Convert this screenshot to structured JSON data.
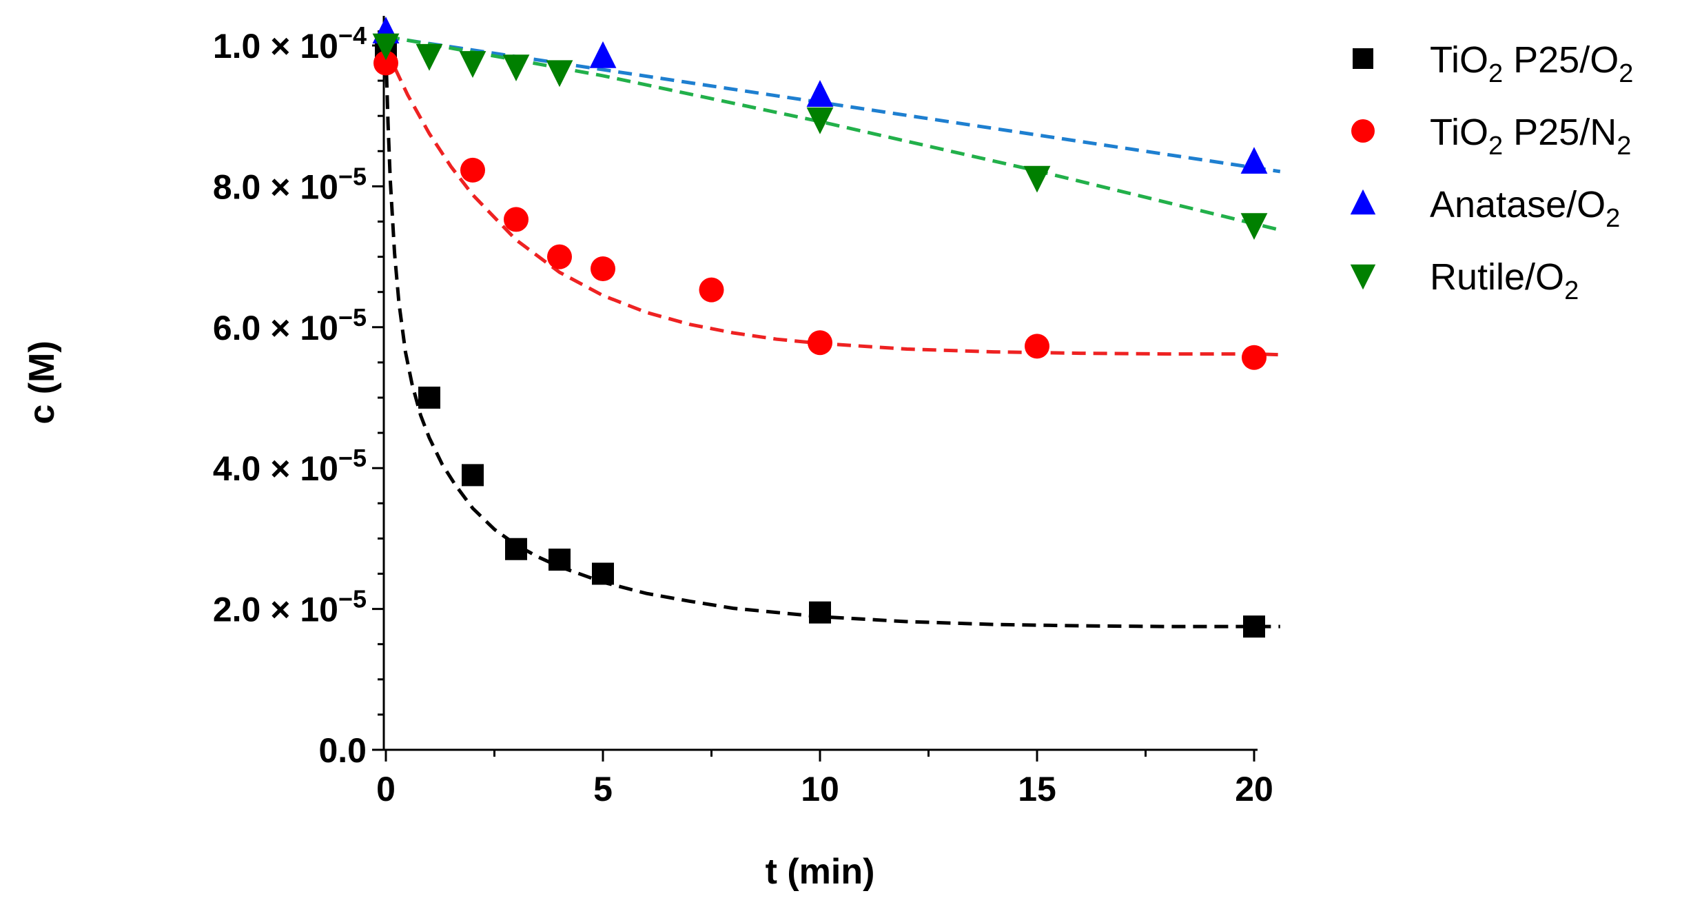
{
  "chart_data": {
    "type": "scatter",
    "title": "",
    "xlabel": "t (min)",
    "ylabel": "c (M)",
    "xlim": [
      0,
      21
    ],
    "ylim": [
      0,
      0.000105
    ],
    "x_ticks": [
      0,
      5,
      10,
      15,
      20
    ],
    "x_tick_labels": [
      "0",
      "5",
      "10",
      "15",
      "20"
    ],
    "y_ticks": [
      0,
      2e-05,
      4e-05,
      6e-05,
      8e-05,
      0.0001
    ],
    "y_tick_labels": [
      {
        "mantissa": "0.0",
        "times": "",
        "base": "",
        "exp": ""
      },
      {
        "mantissa": "2.0",
        "times": "×",
        "base": "10",
        "exp": "−5"
      },
      {
        "mantissa": "4.0",
        "times": "×",
        "base": "10",
        "exp": "−5"
      },
      {
        "mantissa": "6.0",
        "times": "×",
        "base": "10",
        "exp": "−5"
      },
      {
        "mantissa": "8.0",
        "times": "×",
        "base": "10",
        "exp": "−5"
      },
      {
        "mantissa": "1.0",
        "times": "×",
        "base": "10",
        "exp": "−4"
      }
    ],
    "grid": false,
    "legend_position": "top-right, outside plot",
    "series": [
      {
        "name": "TiO2 P25/O2",
        "legend_parts": [
          {
            "t": "TiO"
          },
          {
            "t": "2",
            "sub": true
          },
          {
            "t": " P25/O"
          },
          {
            "t": "2",
            "sub": true
          }
        ],
        "marker": "square",
        "color": "#000000",
        "points": [
          [
            0,
            9.9e-05
          ],
          [
            1,
            5e-05
          ],
          [
            2,
            3.9e-05
          ],
          [
            3,
            2.85e-05
          ],
          [
            4,
            2.7e-05
          ],
          [
            5,
            2.5e-05
          ],
          [
            10,
            1.95e-05
          ],
          [
            20,
            1.75e-05
          ]
        ],
        "fit": {
          "color": "#000000",
          "x": [
            0,
            0.05,
            0.1,
            0.2,
            0.3,
            0.45,
            0.6,
            0.8,
            1,
            1.3,
            1.6,
            2,
            2.5,
            3,
            3.5,
            4,
            5,
            6,
            7,
            8,
            10,
            12,
            14,
            16,
            18,
            20,
            20.6
          ],
          "y": [
            9.9e-05,
            8.9e-05,
            8.1e-05,
            7.05e-05,
            6.35e-05,
            5.65e-05,
            5.2e-05,
            4.75e-05,
            4.43e-05,
            4.05e-05,
            3.76e-05,
            3.43e-05,
            3.13e-05,
            2.91e-05,
            2.74e-05,
            2.6e-05,
            2.38e-05,
            2.22e-05,
            2.11e-05,
            2.01e-05,
            1.89e-05,
            1.82e-05,
            1.78e-05,
            1.76e-05,
            1.75e-05,
            1.75e-05,
            1.75e-05
          ]
        }
      },
      {
        "name": "TiO2 P25/N2",
        "legend_parts": [
          {
            "t": "TiO"
          },
          {
            "t": "2",
            "sub": true
          },
          {
            "t": " P25/N"
          },
          {
            "t": "2",
            "sub": true
          }
        ],
        "marker": "circle",
        "color": "#ff0000",
        "points": [
          [
            0,
            9.75e-05
          ],
          [
            2,
            8.23e-05
          ],
          [
            3,
            7.53e-05
          ],
          [
            4,
            7e-05
          ],
          [
            5,
            6.83e-05
          ],
          [
            7.5,
            6.53e-05
          ],
          [
            10,
            5.78e-05
          ],
          [
            15,
            5.73e-05
          ],
          [
            20,
            5.57e-05
          ]
        ],
        "fit": {
          "color": "#ee2222",
          "x": [
            0,
            0.5,
            1,
            1.5,
            2,
            3,
            4,
            5,
            6,
            7,
            8,
            9,
            10,
            12,
            14,
            16,
            18,
            20,
            20.6
          ],
          "y": [
            9.95e-05,
            9.3e-05,
            8.75e-05,
            8.28e-05,
            7.88e-05,
            7.24e-05,
            6.78e-05,
            6.45e-05,
            6.21e-05,
            6.04e-05,
            5.92e-05,
            5.83e-05,
            5.77e-05,
            5.69e-05,
            5.65e-05,
            5.63e-05,
            5.62e-05,
            5.62e-05,
            5.61e-05
          ]
        }
      },
      {
        "name": "Anatase/O2",
        "legend_parts": [
          {
            "t": "Anatase/O"
          },
          {
            "t": "2",
            "sub": true
          }
        ],
        "marker": "triangle-up",
        "color": "#0000ff",
        "points": [
          [
            0,
            0.000102
          ],
          [
            5,
            9.85e-05
          ],
          [
            10,
            9.3e-05
          ],
          [
            20,
            8.35e-05
          ]
        ],
        "fit": {
          "color": "#1e7fd0",
          "x": [
            0,
            20.6
          ],
          "y": [
            0.0001012,
            8.21e-05
          ]
        }
      },
      {
        "name": "Rutile/O2",
        "legend_parts": [
          {
            "t": "Rutile/O"
          },
          {
            "t": "2",
            "sub": true
          }
        ],
        "marker": "triangle-down",
        "color": "#008000",
        "points": [
          [
            0,
            0.0001
          ],
          [
            1,
            9.85e-05
          ],
          [
            2,
            9.75e-05
          ],
          [
            3,
            9.7e-05
          ],
          [
            4,
            9.62e-05
          ],
          [
            10,
            8.95e-05
          ],
          [
            15,
            8.12e-05
          ],
          [
            20,
            7.45e-05
          ]
        ],
        "fit": {
          "color": "#22b04a",
          "x": [
            0,
            5,
            10,
            15,
            20.6
          ],
          "y": [
            0.0001013,
            9.57e-05,
            8.92e-05,
            8.22e-05,
            7.38e-05
          ]
        }
      }
    ]
  }
}
